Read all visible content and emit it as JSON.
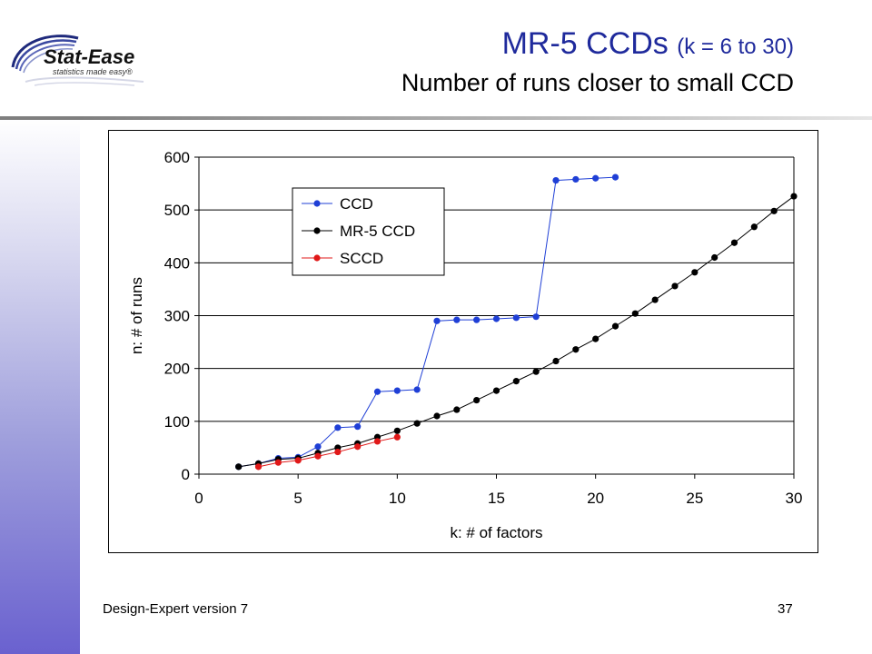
{
  "header": {
    "title_main": "MR-5 CCDs",
    "title_paren": "(k = 6 to 30)",
    "subtitle": "Number of runs closer to small CCD",
    "logo_name": "Stat-Ease",
    "logo_tagline": "statistics made easy®"
  },
  "footer": {
    "left": "Design-Expert version 7",
    "right": "37"
  },
  "colors": {
    "title": "#1f2a9c",
    "ccd": "#1f3fd6",
    "mr5": "#000000",
    "sccd": "#e01818"
  },
  "chart_data": {
    "type": "line",
    "title": "",
    "xlabel": "k: # of factors",
    "ylabel": "n: # of runs",
    "xlim": [
      0,
      30
    ],
    "ylim": [
      0,
      600
    ],
    "xticks": [
      0,
      5,
      10,
      15,
      20,
      25,
      30
    ],
    "yticks": [
      0,
      100,
      200,
      300,
      400,
      500,
      600
    ],
    "grid": "horizontal",
    "legend_position": "top-left",
    "series": [
      {
        "name": "CCD",
        "color": "#1f3fd6",
        "x": [
          2,
          3,
          4,
          5,
          6,
          7,
          8,
          9,
          10,
          11,
          12,
          13,
          14,
          15,
          16,
          17,
          18,
          19,
          20,
          21
        ],
        "y": [
          14,
          20,
          30,
          32,
          52,
          88,
          90,
          156,
          158,
          160,
          290,
          292,
          292,
          294,
          296,
          298,
          556,
          558,
          560,
          562
        ]
      },
      {
        "name": "MR-5 CCD",
        "color": "#000000",
        "x": [
          2,
          3,
          4,
          5,
          6,
          7,
          8,
          9,
          10,
          11,
          12,
          13,
          14,
          15,
          16,
          17,
          18,
          19,
          20,
          21,
          22,
          23,
          24,
          25,
          26,
          27,
          28,
          29,
          30
        ],
        "y": [
          14,
          20,
          28,
          30,
          40,
          50,
          58,
          70,
          82,
          96,
          110,
          122,
          140,
          158,
          176,
          194,
          214,
          236,
          256,
          280,
          304,
          330,
          356,
          382,
          410,
          438,
          468,
          498,
          526
        ]
      },
      {
        "name": "SCCD",
        "color": "#e01818",
        "x": [
          3,
          4,
          5,
          6,
          7,
          8,
          9,
          10
        ],
        "y": [
          14,
          22,
          26,
          34,
          42,
          52,
          62,
          70
        ]
      }
    ]
  }
}
